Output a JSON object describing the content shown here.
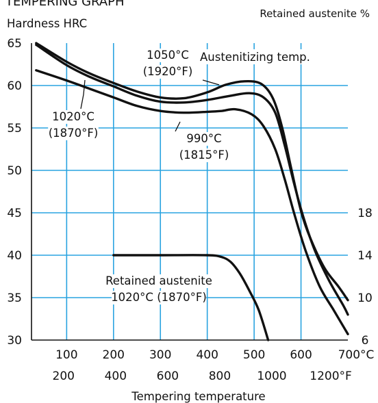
{
  "header": {
    "truncated_title": "TEMPERING GRAPH",
    "left_axis_title": "Hardness HRC",
    "right_axis_title": "Retained austenite %"
  },
  "chart_data": {
    "type": "line",
    "x_unit": "°C",
    "xlabel": "Tempering temperature",
    "xlim": [
      25,
      700
    ],
    "ylim": [
      30,
      65
    ],
    "x_ticks": [
      100,
      200,
      300,
      400,
      500,
      600,
      700
    ],
    "x_tick_labels": [
      "100",
      "200",
      "300",
      "400",
      "500",
      "600",
      "700°C"
    ],
    "x_secondary_ticks": [
      93.3,
      204.4,
      315.6,
      426.7,
      537.8,
      648.9
    ],
    "x_secondary_tick_labels": [
      "200",
      "400",
      "600",
      "800",
      "1000",
      "1200°F"
    ],
    "y_ticks": [
      30,
      35,
      40,
      45,
      50,
      55,
      60,
      65
    ],
    "y_tick_labels": [
      "30",
      "35",
      "40",
      "45",
      "50",
      "55",
      "60",
      "65"
    ],
    "y_right_ticks_hrc_equiv": [
      30,
      35,
      40,
      45
    ],
    "y_right_tick_labels": [
      "6",
      "10",
      "14",
      "18"
    ],
    "legend_title": "Austenitizing temp.",
    "grid": true,
    "series": [
      {
        "name": "1050°C (1920°F)",
        "axis": "hardness",
        "label_lines": [
          "1050°C",
          "(1920°F)"
        ],
        "points": [
          [
            35,
            65
          ],
          [
            100,
            62.8
          ],
          [
            150,
            61.4
          ],
          [
            200,
            60.3
          ],
          [
            250,
            59.3
          ],
          [
            300,
            58.6
          ],
          [
            350,
            58.5
          ],
          [
            400,
            59.2
          ],
          [
            440,
            60.1
          ],
          [
            480,
            60.5
          ],
          [
            515,
            60.2
          ],
          [
            540,
            58.5
          ],
          [
            560,
            55
          ],
          [
            580,
            50
          ],
          [
            600,
            45.2
          ],
          [
            620,
            42
          ],
          [
            650,
            38.5
          ],
          [
            680,
            36.3
          ],
          [
            700,
            34.7
          ]
        ]
      },
      {
        "name": "1020°C (1870°F)",
        "axis": "hardness",
        "label_lines": [
          "1020°C",
          "(1870°F)"
        ],
        "points": [
          [
            35,
            64.8
          ],
          [
            100,
            62.4
          ],
          [
            150,
            61
          ],
          [
            200,
            59.9
          ],
          [
            250,
            58.8
          ],
          [
            300,
            58.1
          ],
          [
            350,
            58
          ],
          [
            400,
            58.3
          ],
          [
            450,
            58.8
          ],
          [
            490,
            59.1
          ],
          [
            520,
            58.6
          ],
          [
            545,
            56.8
          ],
          [
            565,
            53
          ],
          [
            585,
            48.5
          ],
          [
            605,
            44.5
          ],
          [
            630,
            40.5
          ],
          [
            660,
            37
          ],
          [
            690,
            34.1
          ],
          [
            700,
            33
          ]
        ]
      },
      {
        "name": "990°C (1815°F)",
        "axis": "hardness",
        "label_lines": [
          "990°C",
          "(1815°F)"
        ],
        "points": [
          [
            35,
            61.8
          ],
          [
            100,
            60.6
          ],
          [
            150,
            59.6
          ],
          [
            200,
            58.6
          ],
          [
            250,
            57.6
          ],
          [
            300,
            57
          ],
          [
            350,
            56.8
          ],
          [
            400,
            56.9
          ],
          [
            430,
            57
          ],
          [
            460,
            57.2
          ],
          [
            495,
            56.6
          ],
          [
            520,
            55.2
          ],
          [
            545,
            52.5
          ],
          [
            565,
            49
          ],
          [
            585,
            45
          ],
          [
            610,
            40.5
          ],
          [
            640,
            36.3
          ],
          [
            670,
            33.5
          ],
          [
            700,
            30.7
          ]
        ]
      },
      {
        "name": "Retained austenite 1020°C (1870°F)",
        "axis": "retained_austenite",
        "label_lines": [
          "Retained austenite",
          "1020°C (1870°F)"
        ],
        "points": [
          [
            200,
            40
          ],
          [
            300,
            40
          ],
          [
            400,
            40
          ],
          [
            430,
            39.8
          ],
          [
            450,
            39.2
          ],
          [
            470,
            37.8
          ],
          [
            490,
            35.8
          ],
          [
            510,
            33.5
          ],
          [
            530,
            30
          ]
        ]
      }
    ]
  }
}
